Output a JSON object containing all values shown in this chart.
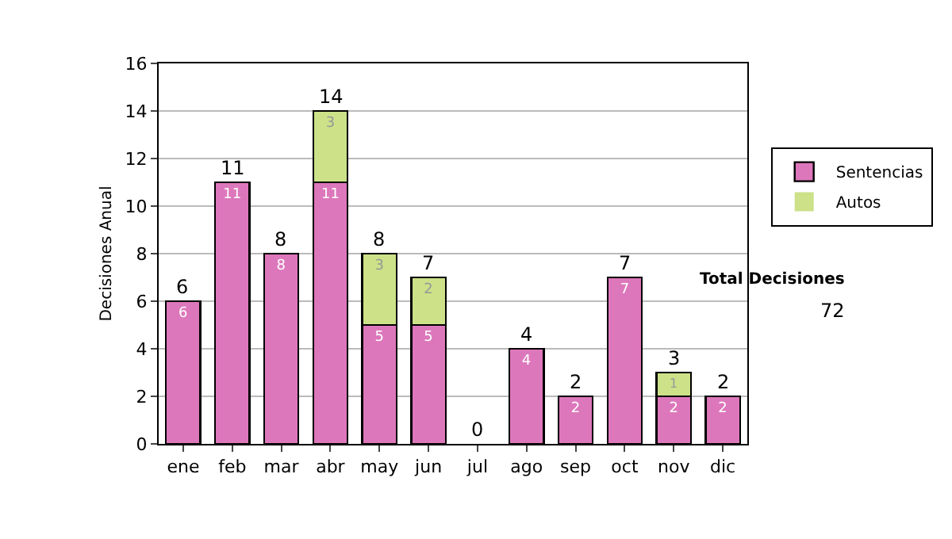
{
  "chart_data": {
    "type": "bar",
    "stacked": true,
    "ylabel": "Decisiones Anual",
    "categories": [
      "ene",
      "feb",
      "mar",
      "abr",
      "may",
      "jun",
      "jul",
      "ago",
      "sep",
      "oct",
      "nov",
      "dic"
    ],
    "series": [
      {
        "name": "Sentencias",
        "color": "#dd77bb",
        "values": [
          6,
          11,
          8,
          11,
          5,
          5,
          0,
          4,
          2,
          7,
          2,
          2
        ],
        "value_labels": [
          "6",
          "11",
          "8",
          "11",
          "5",
          "5",
          null,
          "4",
          "2",
          "7",
          "2",
          "2"
        ]
      },
      {
        "name": "Autos",
        "color": "#cce188",
        "values": [
          0,
          0,
          0,
          3,
          3,
          2,
          0,
          0,
          0,
          0,
          1,
          0
        ],
        "value_labels": [
          null,
          null,
          null,
          "3",
          "3",
          "2",
          null,
          null,
          null,
          null,
          "1",
          null
        ]
      }
    ],
    "totals": [
      "6",
      "11",
      "8",
      "14",
      "8",
      "7",
      "0",
      "4",
      "2",
      "7",
      "3",
      "2"
    ],
    "ylim": [
      0,
      16
    ],
    "yticks": [
      0,
      2,
      4,
      6,
      8,
      10,
      12,
      14,
      16
    ],
    "grid": "y",
    "legend": "right",
    "annotations": [
      "Total Decisiones",
      "72"
    ]
  }
}
